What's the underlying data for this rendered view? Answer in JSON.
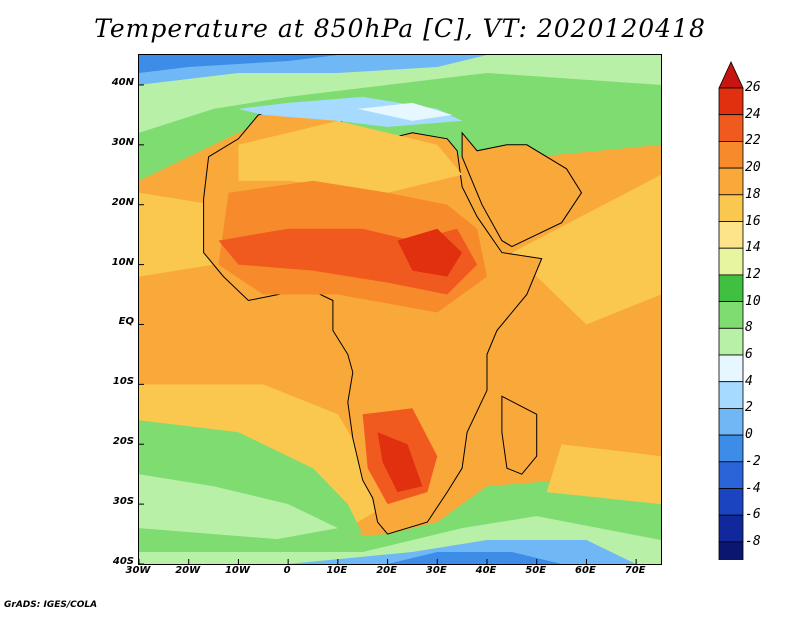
{
  "title": "Temperature at 850hPa [C], VT: 2020120418",
  "credit": "GrADS: IGES/COLA",
  "map": {
    "lon_range": [
      -30,
      75
    ],
    "lat_range": [
      -40,
      45
    ],
    "lon_ticks": [
      "30W",
      "20W",
      "10W",
      "0",
      "10E",
      "20E",
      "30E",
      "40E",
      "50E",
      "60E",
      "70E"
    ],
    "lat_ticks": [
      "40N",
      "30N",
      "20N",
      "10N",
      "EQ",
      "10S",
      "20S",
      "30S",
      "40S"
    ],
    "field": "Temperature at 850hPa",
    "units": "C"
  },
  "colorbar": {
    "levels": [
      "26",
      "24",
      "22",
      "20",
      "18",
      "16",
      "14",
      "12",
      "10",
      "8",
      "6",
      "4",
      "2",
      "0",
      "-2",
      "-4",
      "-6",
      "-8"
    ],
    "colors": [
      "#e03010",
      "#f05a1e",
      "#f78a2a",
      "#f9a83a",
      "#fbc84f",
      "#fde38a",
      "#e8f5a0",
      "#3fc040",
      "#7fdc70",
      "#b8f0a8",
      "#e6f7ff",
      "#a6dbff",
      "#6fb8f5",
      "#3c8ce8",
      "#2a64d8",
      "#1a44c0",
      "#10289c",
      "#0a1670"
    ],
    "top_arrow_color": "#c8150f",
    "bottom_arrow_color": "#dcd8f5"
  },
  "field_colors": {
    "ocean_warm": "#f9a83a",
    "ocean_mild": "#fbc84f",
    "ocean_green": "#7fdc70",
    "ocean_cool": "#b8f0a8",
    "ocean_cold": "#6fb8f5",
    "ocean_colder": "#3c8ce8",
    "land_hot": "#f05a1e",
    "land_hotter": "#e03010",
    "land_warm": "#f78a2a",
    "med_cool": "#a6dbff",
    "med_light": "#e6f7ff"
  }
}
